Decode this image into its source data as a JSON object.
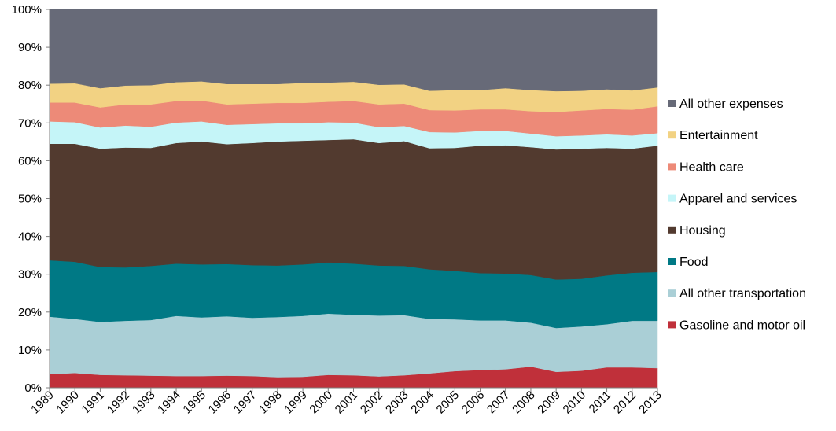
{
  "chart_data": {
    "type": "area",
    "stacked": true,
    "percent": true,
    "x": [
      "1989",
      "1990",
      "1991",
      "1992",
      "1993",
      "1994",
      "1995",
      "1996",
      "1997",
      "1998",
      "1999",
      "2000",
      "2001",
      "2002",
      "2003",
      "2004",
      "2005",
      "2006",
      "2007",
      "2008",
      "2009",
      "2010",
      "2011",
      "2012",
      "2013"
    ],
    "ylim": [
      0,
      100
    ],
    "yticks": [
      "0%",
      "10%",
      "20%",
      "30%",
      "40%",
      "50%",
      "60%",
      "70%",
      "80%",
      "90%",
      "100%"
    ],
    "grid": false,
    "legend_position": "right",
    "series": [
      {
        "name": "Gasoline and motor oil",
        "color": "#c0303a",
        "values": [
          3.6,
          3.9,
          3.4,
          3.3,
          3.2,
          3.1,
          3.1,
          3.2,
          3.1,
          2.8,
          2.9,
          3.4,
          3.3,
          3.0,
          3.3,
          3.8,
          4.4,
          4.7,
          4.9,
          5.6,
          4.2,
          4.5,
          5.4,
          5.4,
          5.2
        ]
      },
      {
        "name": "All other transportation",
        "color": "#aacfd6",
        "values": [
          15.2,
          14.3,
          14.0,
          14.4,
          14.7,
          15.9,
          15.5,
          15.7,
          15.4,
          15.9,
          16.1,
          16.2,
          16.0,
          16.1,
          15.9,
          14.4,
          13.7,
          13.1,
          12.9,
          11.6,
          11.6,
          11.7,
          11.4,
          12.3,
          12.5
        ]
      },
      {
        "name": "Food",
        "color": "#007985",
        "values": [
          14.9,
          15.1,
          14.5,
          14.1,
          14.3,
          13.8,
          14.0,
          13.8,
          13.9,
          13.6,
          13.6,
          13.5,
          13.5,
          13.2,
          13.0,
          13.1,
          12.8,
          12.5,
          12.4,
          12.6,
          12.8,
          12.6,
          12.9,
          12.7,
          12.9
        ]
      },
      {
        "name": "Housing",
        "color": "#523a2f",
        "values": [
          30.8,
          31.2,
          31.3,
          31.7,
          31.2,
          31.9,
          32.5,
          31.7,
          32.3,
          32.8,
          32.7,
          32.4,
          32.9,
          32.4,
          33.0,
          32.0,
          32.5,
          33.7,
          33.9,
          33.8,
          34.4,
          34.4,
          33.7,
          32.8,
          33.4
        ]
      },
      {
        "name": "Apparel and services",
        "color": "#c5f5f8",
        "values": [
          5.9,
          5.7,
          5.6,
          5.8,
          5.6,
          5.4,
          5.3,
          5.1,
          5.0,
          4.8,
          4.6,
          4.7,
          4.4,
          4.2,
          4.0,
          4.3,
          4.1,
          3.9,
          3.8,
          3.6,
          3.5,
          3.5,
          3.6,
          3.5,
          3.3
        ]
      },
      {
        "name": "Health care",
        "color": "#ed8a78",
        "values": [
          5.0,
          5.2,
          5.3,
          5.6,
          5.9,
          5.7,
          5.5,
          5.4,
          5.4,
          5.4,
          5.4,
          5.4,
          5.7,
          6.0,
          5.9,
          5.8,
          5.8,
          5.7,
          5.7,
          5.9,
          6.4,
          6.6,
          6.7,
          6.8,
          7.1
        ]
      },
      {
        "name": "Entertainment",
        "color": "#f2d283",
        "values": [
          5.0,
          5.1,
          5.1,
          5.0,
          5.1,
          5.0,
          5.1,
          5.4,
          5.2,
          5.0,
          5.3,
          5.1,
          5.1,
          5.2,
          5.1,
          5.1,
          5.4,
          5.1,
          5.6,
          5.6,
          5.5,
          5.2,
          5.2,
          5.1,
          5.0
        ]
      },
      {
        "name": "All other expenses",
        "color": "#676a78",
        "values": [
          19.6,
          19.5,
          20.8,
          20.1,
          20.0,
          19.2,
          19.0,
          19.7,
          19.7,
          19.7,
          19.4,
          19.3,
          19.1,
          19.9,
          19.8,
          21.5,
          21.3,
          21.3,
          20.8,
          21.3,
          21.6,
          21.5,
          21.1,
          21.4,
          20.6
        ]
      }
    ]
  }
}
